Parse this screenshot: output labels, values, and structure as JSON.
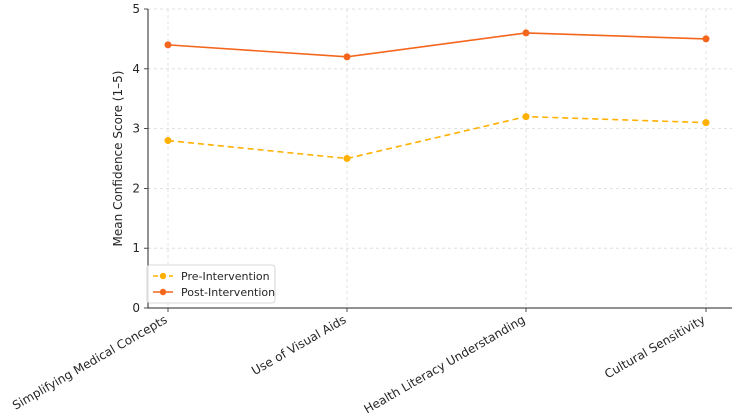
{
  "chart_data": {
    "type": "line",
    "title": "",
    "xlabel": "",
    "ylabel": "Mean Confidence Score (1–5)",
    "categories": [
      "Simplifying Medical Concepts",
      "Use of Visual Aids",
      "Health Literacy Understanding",
      "Cultural Sensitivity"
    ],
    "ylim": [
      0,
      5
    ],
    "yticks": [
      0,
      1,
      2,
      3,
      4,
      5
    ],
    "grid": true,
    "legend_position": "bottom-left",
    "series": [
      {
        "name": "Pre-Intervention",
        "values": [
          2.8,
          2.5,
          3.2,
          3.1
        ],
        "color": "#ffb000",
        "style": "dashed"
      },
      {
        "name": "Post-Intervention",
        "values": [
          4.4,
          4.2,
          4.6,
          4.5
        ],
        "color": "#f4661b",
        "style": "solid"
      }
    ]
  }
}
